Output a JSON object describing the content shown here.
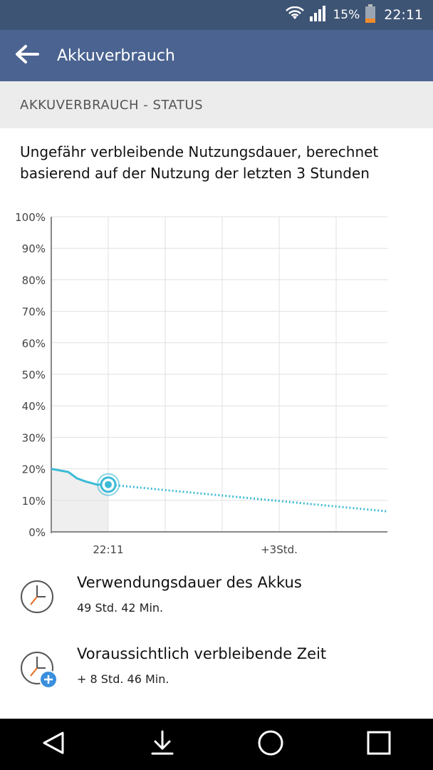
{
  "status_bar": {
    "battery_percent_label": "15%",
    "time": "22:11",
    "icons": [
      "wifi-icon",
      "signal-icon",
      "battery-icon"
    ]
  },
  "app_bar": {
    "title": "Akkuverbrauch",
    "back_icon": "arrow-back-icon"
  },
  "section": {
    "header": "AKKUVERBRAUCH - STATUS",
    "description": "Ungefähr verbleibende Nutzungsdauer, berechnet basierend auf der Nutzung der letzten 3 Stunden"
  },
  "chart_data": {
    "type": "line",
    "title": "",
    "xlabel": "",
    "ylabel": "",
    "ylim": [
      0,
      100
    ],
    "y_ticks": [
      "0%",
      "10%",
      "20%",
      "30%",
      "40%",
      "50%",
      "60%",
      "70%",
      "80%",
      "90%",
      "100%"
    ],
    "x_ticks": [
      {
        "label": "22:11",
        "x": 0
      },
      {
        "label": "+3Std.",
        "x": 3
      }
    ],
    "xlim": [
      -1,
      4.9
    ],
    "grid": true,
    "series": [
      {
        "kind": "history",
        "values_x": [
          -1,
          -0.7,
          -0.55,
          -0.4,
          -0.2,
          0
        ],
        "values_y": [
          20,
          19,
          17,
          16,
          15,
          15
        ]
      },
      {
        "kind": "forecast",
        "values_x": [
          0,
          4.9
        ],
        "values_y": [
          15,
          6.5
        ]
      }
    ],
    "current_marker": {
      "x": 0,
      "y": 15
    },
    "colors": {
      "line": "#3dbbd6",
      "history_fill": "#efefef",
      "grid": "#e0e0e0",
      "axis": "#888888"
    }
  },
  "items": [
    {
      "icon": "clock-icon",
      "primary": "Verwendungsdauer des Akkus",
      "secondary": "49 Std. 42 Min."
    },
    {
      "icon": "clock-plus-icon",
      "primary": "Voraussichtlich verbleibende Zeit",
      "secondary": "+ 8 Std. 46 Min."
    }
  ],
  "navigation": [
    "back-icon",
    "download-icon",
    "home-icon",
    "recents-icon"
  ]
}
